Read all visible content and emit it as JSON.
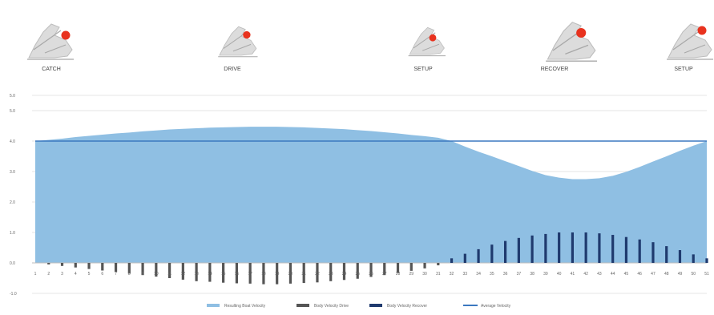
{
  "phases": [
    {
      "label": "CATCH"
    },
    {
      "label": "DRIVE"
    },
    {
      "label": "SETUP"
    },
    {
      "label": "RECOVER"
    },
    {
      "label": "SETUP"
    }
  ],
  "chart_data": {
    "type": "area",
    "x": [
      1,
      2,
      3,
      4,
      5,
      6,
      7,
      8,
      9,
      10,
      11,
      12,
      13,
      14,
      15,
      16,
      17,
      18,
      19,
      20,
      21,
      22,
      23,
      24,
      25,
      26,
      27,
      28,
      29,
      30,
      31,
      32,
      33,
      34,
      35,
      36,
      37,
      38,
      39,
      40,
      41,
      42,
      43,
      44,
      45,
      46,
      47,
      48,
      49,
      50,
      51
    ],
    "yticks": [
      "5.0",
      "5.0",
      "4.0",
      "3.0",
      "2.0",
      "1.0",
      "0.0",
      "-1.0"
    ],
    "ylim": [
      -1,
      5.5
    ],
    "series": [
      {
        "name": "Resulting Boat Velocity",
        "type": "area",
        "color": "#8fbfe3",
        "values": [
          4.0,
          4.04,
          4.08,
          4.13,
          4.17,
          4.21,
          4.25,
          4.28,
          4.32,
          4.35,
          4.38,
          4.4,
          4.42,
          4.44,
          4.45,
          4.46,
          4.47,
          4.47,
          4.47,
          4.46,
          4.45,
          4.43,
          4.41,
          4.39,
          4.36,
          4.33,
          4.29,
          4.25,
          4.2,
          4.16,
          4.11,
          4.0,
          3.82,
          3.65,
          3.5,
          3.34,
          3.18,
          3.02,
          2.88,
          2.8,
          2.75,
          2.75,
          2.78,
          2.86,
          2.99,
          3.15,
          3.33,
          3.5,
          3.68,
          3.85,
          4.0
        ]
      },
      {
        "name": "Body Velocity Drive",
        "type": "bar",
        "color": "#555555",
        "values": [
          0,
          -0.05,
          -0.1,
          -0.15,
          -0.2,
          -0.25,
          -0.3,
          -0.35,
          -0.4,
          -0.45,
          -0.5,
          -0.55,
          -0.6,
          -0.62,
          -0.65,
          -0.67,
          -0.68,
          -0.7,
          -0.7,
          -0.68,
          -0.66,
          -0.64,
          -0.6,
          -0.56,
          -0.52,
          -0.46,
          -0.4,
          -0.33,
          -0.26,
          -0.18,
          -0.08,
          0,
          0,
          0,
          0,
          0,
          0,
          0,
          0,
          0,
          0,
          0,
          0,
          0,
          0,
          0,
          0,
          0,
          0,
          0,
          0
        ]
      },
      {
        "name": "Body Velocity Recover",
        "type": "bar",
        "color": "#1f3a6e",
        "values": [
          0,
          0,
          0,
          0,
          0,
          0,
          0,
          0,
          0,
          0,
          0,
          0,
          0,
          0,
          0,
          0,
          0,
          0,
          0,
          0,
          0,
          0,
          0,
          0,
          0,
          0,
          0,
          0,
          0,
          0,
          0,
          0.15,
          0.3,
          0.45,
          0.6,
          0.72,
          0.82,
          0.9,
          0.95,
          1.0,
          1.0,
          1.0,
          0.97,
          0.92,
          0.85,
          0.77,
          0.68,
          0.55,
          0.42,
          0.28,
          0.15
        ]
      },
      {
        "name": "Average Velocity",
        "type": "line",
        "color": "#3b78c0",
        "values": [
          4.0,
          4.0,
          4.0,
          4.0,
          4.0,
          4.0,
          4.0,
          4.0,
          4.0,
          4.0,
          4.0,
          4.0,
          4.0,
          4.0,
          4.0,
          4.0,
          4.0,
          4.0,
          4.0,
          4.0,
          4.0,
          4.0,
          4.0,
          4.0,
          4.0,
          4.0,
          4.0,
          4.0,
          4.0,
          4.0,
          4.0,
          4.0,
          4.0,
          4.0,
          4.0,
          4.0,
          4.0,
          4.0,
          4.0,
          4.0,
          4.0,
          4.0,
          4.0,
          4.0,
          4.0,
          4.0,
          4.0,
          4.0,
          4.0,
          4.0,
          4.0
        ]
      }
    ],
    "legend": {
      "position": "bottom"
    },
    "grid": true
  },
  "icons": {
    "figure": "rowing-figure-icon",
    "marker": "red-marker-icon",
    "accent": "#e8321e"
  }
}
